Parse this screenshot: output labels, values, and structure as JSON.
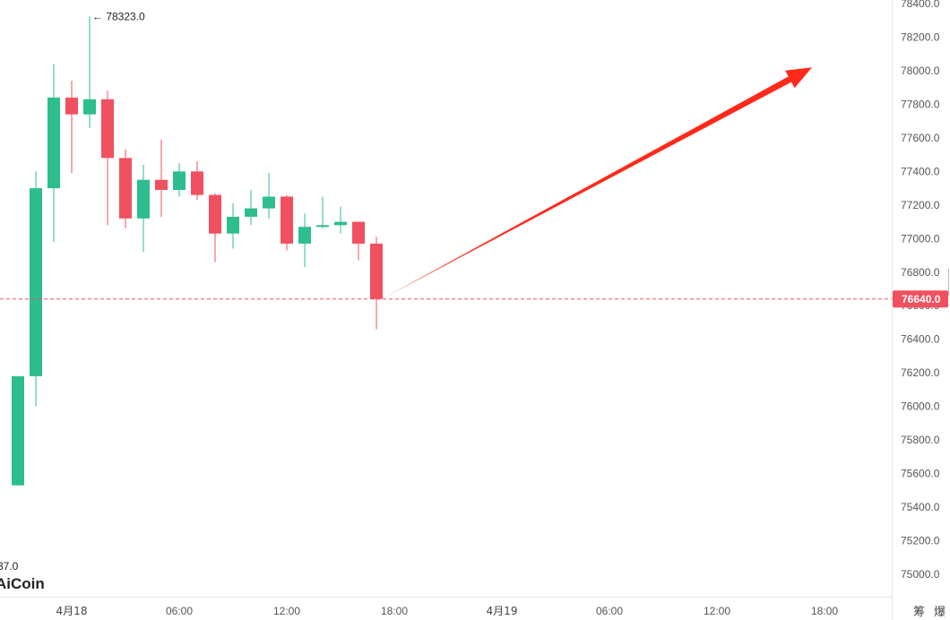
{
  "chart_data": {
    "type": "candlestick",
    "title": "",
    "xlabel": "",
    "ylabel": "",
    "ylim": [
      74900,
      78440
    ],
    "y_ticks": [
      "78400.0",
      "78200.0",
      "78000.0",
      "77800.0",
      "77600.0",
      "77400.0",
      "77200.0",
      "77000.0",
      "76800.0",
      "76600.0",
      "76400.0",
      "76200.0",
      "76000.0",
      "75800.0",
      "75600.0",
      "75400.0",
      "75200.0",
      "75000.0"
    ],
    "x_ticks": [
      "4月18",
      "06:00",
      "12:00",
      "18:00",
      "4月19",
      "06:00",
      "12:00",
      "18:00"
    ],
    "x_tick_hours": [
      0,
      6,
      12,
      18,
      24,
      30,
      36,
      42
    ],
    "candle_interval_hours": 1,
    "candles": [
      {
        "t": -3,
        "open": 75530,
        "high": 76180,
        "low": 75530,
        "close": 76180
      },
      {
        "t": -2,
        "open": 76180,
        "high": 77400,
        "low": 76000,
        "close": 77300
      },
      {
        "t": -1,
        "open": 77300,
        "high": 78040,
        "low": 76980,
        "close": 77840
      },
      {
        "t": 0,
        "open": 77840,
        "high": 77940,
        "low": 77390,
        "close": 77740
      },
      {
        "t": 1,
        "open": 77740,
        "high": 78323,
        "low": 77660,
        "close": 77830
      },
      {
        "t": 2,
        "open": 77830,
        "high": 77880,
        "low": 77080,
        "close": 77480
      },
      {
        "t": 3,
        "open": 77480,
        "high": 77530,
        "low": 77060,
        "close": 77120
      },
      {
        "t": 4,
        "open": 77120,
        "high": 77440,
        "low": 76920,
        "close": 77350
      },
      {
        "t": 5,
        "open": 77350,
        "high": 77590,
        "low": 77130,
        "close": 77290
      },
      {
        "t": 6,
        "open": 77290,
        "high": 77450,
        "low": 77250,
        "close": 77400
      },
      {
        "t": 7,
        "open": 77400,
        "high": 77460,
        "low": 77230,
        "close": 77260
      },
      {
        "t": 8,
        "open": 77260,
        "high": 77270,
        "low": 76860,
        "close": 77030
      },
      {
        "t": 9,
        "open": 77030,
        "high": 77210,
        "low": 76940,
        "close": 77130
      },
      {
        "t": 10,
        "open": 77130,
        "high": 77290,
        "low": 77080,
        "close": 77180
      },
      {
        "t": 11,
        "open": 77180,
        "high": 77390,
        "low": 77120,
        "close": 77250
      },
      {
        "t": 12,
        "open": 77250,
        "high": 77260,
        "low": 76930,
        "close": 76970
      },
      {
        "t": 13,
        "open": 76970,
        "high": 77150,
        "low": 76830,
        "close": 77070
      },
      {
        "t": 14,
        "open": 77070,
        "high": 77250,
        "low": 77060,
        "close": 77080
      },
      {
        "t": 15,
        "open": 77080,
        "high": 77190,
        "low": 77030,
        "close": 77100
      },
      {
        "t": 16,
        "open": 77100,
        "high": 77100,
        "low": 76870,
        "close": 76970
      },
      {
        "t": 17,
        "open": 76970,
        "high": 77010,
        "low": 76460,
        "close": 76640
      }
    ],
    "up_color": "#2dbd8f",
    "down_color": "#f0505f",
    "last_price": "76640.0",
    "last_price_color": "#f0505f",
    "high_annotation": {
      "text": "← 78323.0",
      "t": 1,
      "price": 78323
    },
    "low_annotation_partial": "37.0",
    "arrow": {
      "from_t": 17.3,
      "from_price": 76640,
      "to_t": 41.3,
      "to_price": 78020,
      "color": "#ff2a1a"
    },
    "grid": false,
    "legend": "none"
  },
  "logo": {
    "text": "AiCoin"
  },
  "corner_labels": [
    "筹",
    "爆"
  ]
}
